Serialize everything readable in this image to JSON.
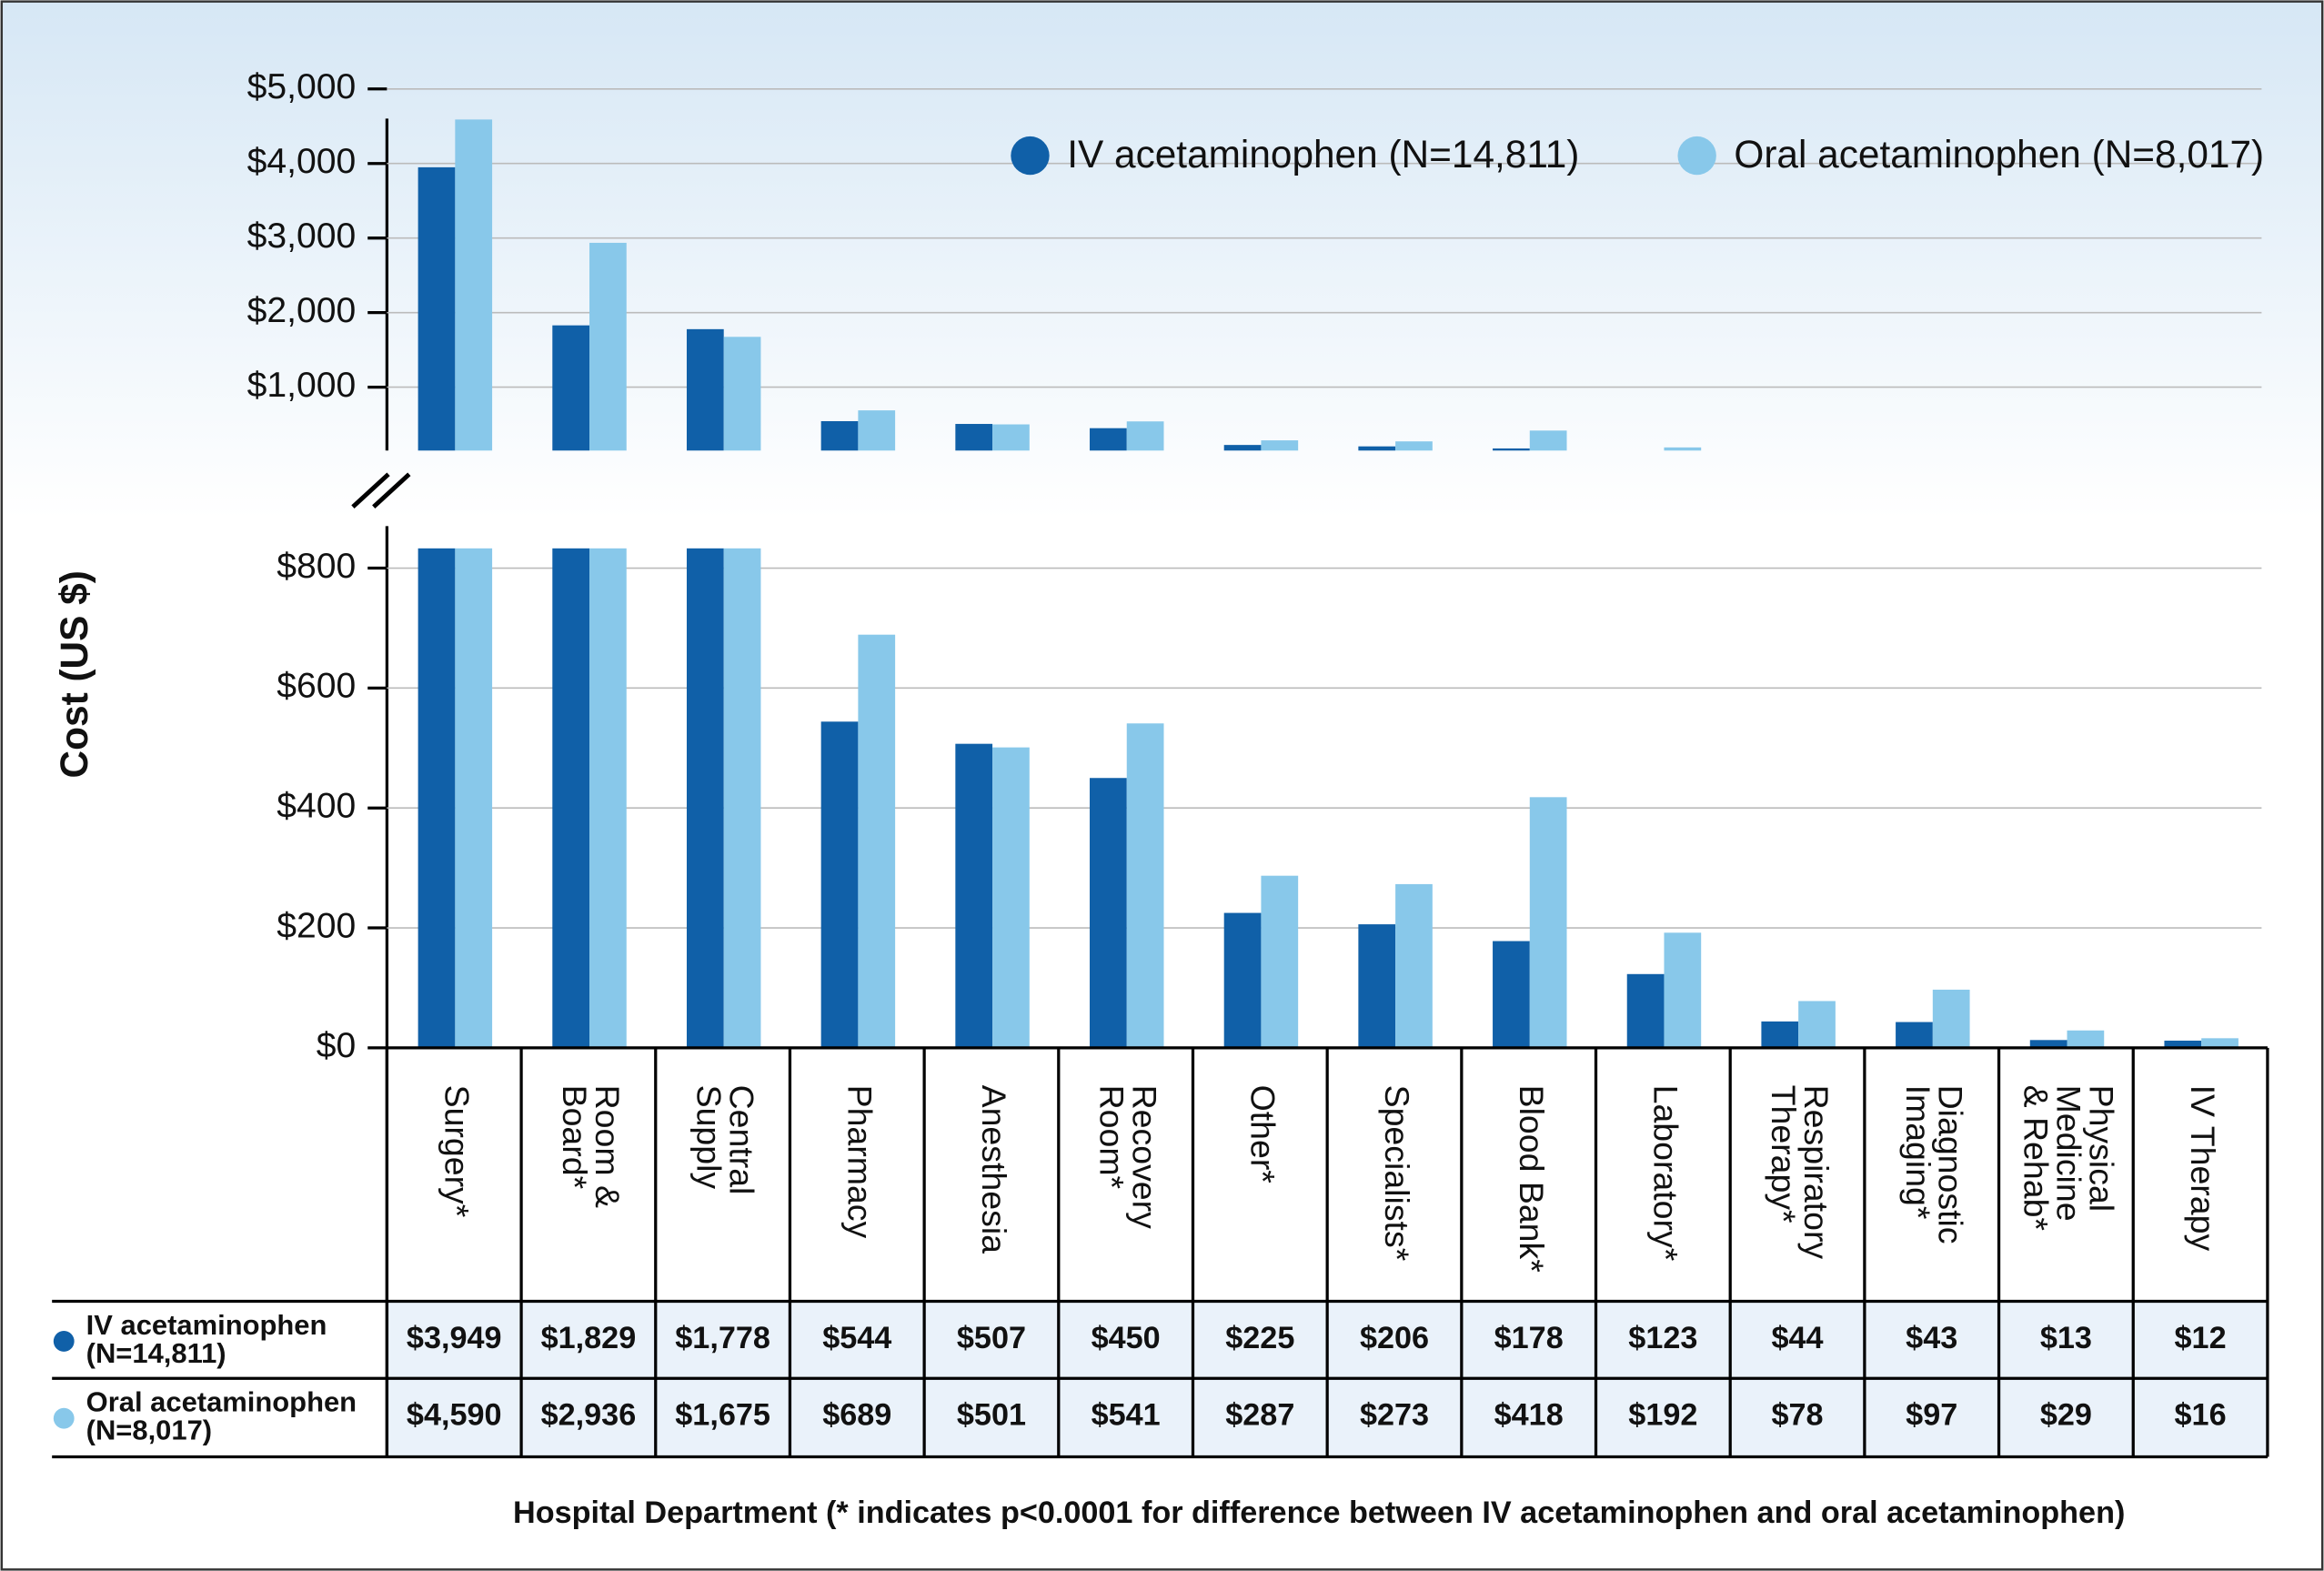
{
  "chart_data": {
    "type": "bar",
    "ylabel": "Cost (US $)",
    "xlabel": "Hospital Department (* indicates p<0.0001 for difference between IV acetaminophen and oral acetaminophen)",
    "categories": [
      "Surgery*",
      "Room &\nBoard*",
      "Central\nSupply",
      "Pharmacy",
      "Anesthesia",
      "Recovery\nRoom*",
      "Other*",
      "Specialists*",
      "Blood Bank*",
      "Laboratory*",
      "Respiratory\nTherapy*",
      "Diagnostic\nImaging*",
      "Physical\nMedicine\n& Rehab*",
      "IV Therapy"
    ],
    "series": [
      {
        "name": "IV acetaminophen (N=14,811)",
        "color": "#1060a8",
        "values": [
          3949,
          1829,
          1778,
          544,
          507,
          450,
          225,
          206,
          178,
          123,
          44,
          43,
          13,
          12
        ],
        "value_labels": [
          "$3,949",
          "$1,829",
          "$1,778",
          "$544",
          "$507",
          "$450",
          "$225",
          "$206",
          "$178",
          "$123",
          "$44",
          "$43",
          "$13",
          "$12"
        ]
      },
      {
        "name": "Oral acetaminophen (N=8,017)",
        "color": "#88c8ea",
        "values": [
          4590,
          2936,
          1675,
          689,
          501,
          541,
          287,
          273,
          418,
          192,
          78,
          97,
          29,
          16
        ],
        "value_labels": [
          "$4,590",
          "$2,936",
          "$1,675",
          "$689",
          "$501",
          "$541",
          "$287",
          "$273",
          "$418",
          "$192",
          "$78",
          "$97",
          "$29",
          "$16"
        ]
      }
    ],
    "table_row_labels": [
      "IV acetaminophen\n(N=14,811)",
      "Oral acetaminophen\n(N=8,017)"
    ],
    "ylim": [
      0,
      870
    ],
    "yticks": [
      {
        "value": 0,
        "label": "$0"
      },
      {
        "value": 200,
        "label": "$200"
      },
      {
        "value": 400,
        "label": "$400"
      },
      {
        "value": 600,
        "label": "$600"
      },
      {
        "value": 800,
        "label": "$800"
      }
    ],
    "ylim_upper": [
      150,
      5000
    ],
    "yticks_upper": [
      {
        "value": 1000,
        "label": "$1,000"
      },
      {
        "value": 2000,
        "label": "$2,000"
      },
      {
        "value": 3000,
        "label": "$3,000"
      },
      {
        "value": 4000,
        "label": "$4,000"
      },
      {
        "value": 5000,
        "label": "$5,000"
      }
    ],
    "grid": true,
    "legend": "top-right"
  }
}
